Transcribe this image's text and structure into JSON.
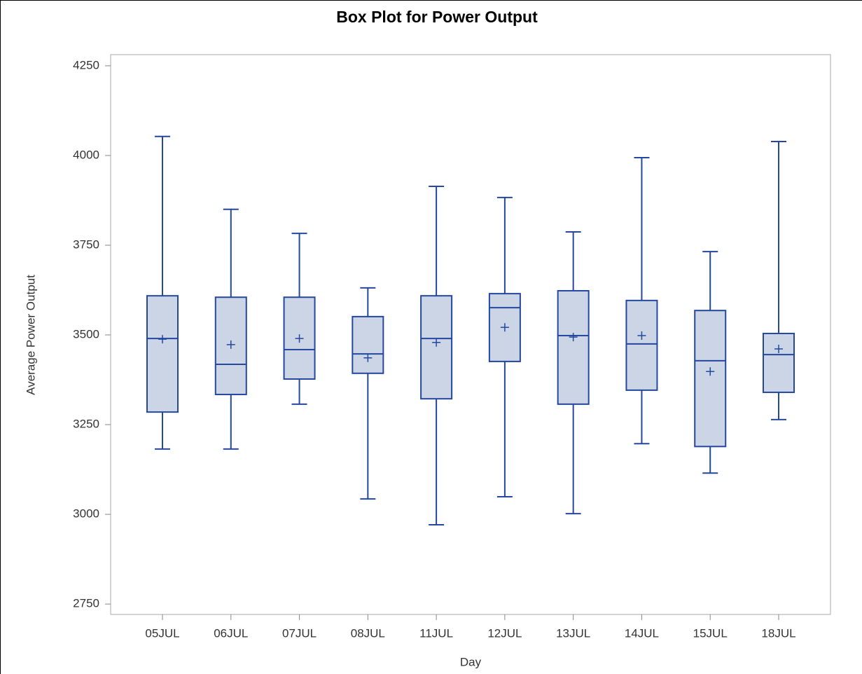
{
  "chart_data": {
    "type": "box",
    "title": "Box Plot for Power Output",
    "x_label": "Day",
    "y_label": "Average Power Output",
    "categories": [
      "05JUL",
      "06JUL",
      "07JUL",
      "08JUL",
      "11JUL",
      "12JUL",
      "13JUL",
      "14JUL",
      "15JUL",
      "18JUL"
    ],
    "min": [
      3182,
      3182,
      3307,
      3043,
      2971,
      3049,
      3002,
      3197,
      3115,
      3264
    ],
    "q1": [
      3285,
      3334,
      3377,
      3393,
      3322,
      3426,
      3307,
      3346,
      3189,
      3340
    ],
    "median": [
      3490,
      3418,
      3459,
      3447,
      3490,
      3576,
      3498,
      3475,
      3428,
      3445
    ],
    "q3": [
      3609,
      3605,
      3605,
      3551,
      3609,
      3615,
      3623,
      3596,
      3568,
      3504
    ],
    "max": [
      4053,
      3850,
      3783,
      3631,
      3914,
      3883,
      3787,
      3994,
      3732,
      4039
    ],
    "mean": [
      3488,
      3473,
      3490,
      3436,
      3479,
      3521,
      3494,
      3498,
      3398,
      3461
    ],
    "color": "#2447a0",
    "fill": "#cbd5e5",
    "ylim": [
      2721,
      4281
    ],
    "yticks": [
      2750,
      3000,
      3250,
      3500,
      3750,
      4000,
      4250
    ]
  }
}
